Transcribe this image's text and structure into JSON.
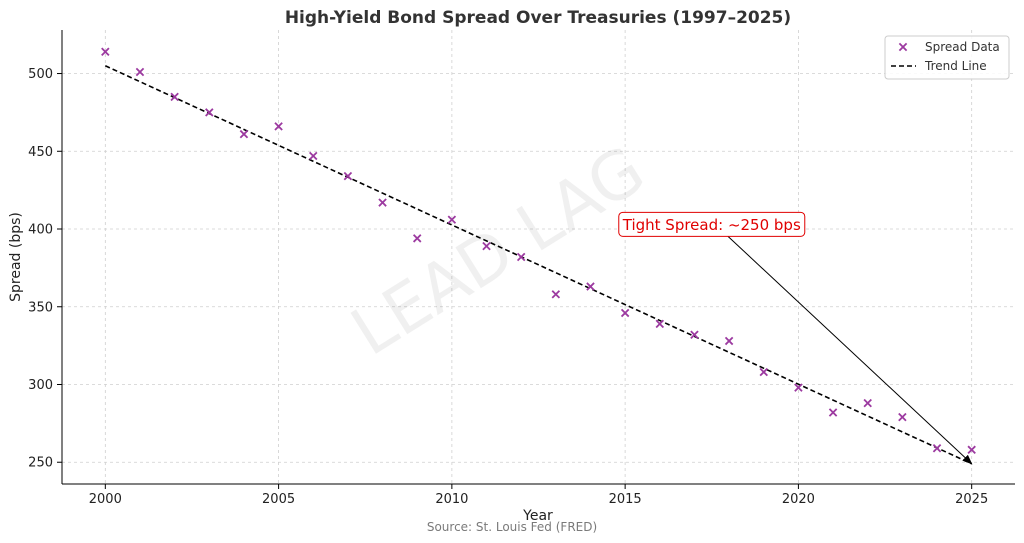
{
  "chart_data": {
    "type": "scatter",
    "title": "High-Yield Bond Spread Over Treasuries (1997–2025)",
    "xlabel": "Year",
    "ylabel": "Spread (bps)",
    "xlim": [
      1998.75,
      2026.25
    ],
    "ylim": [
      236,
      528
    ],
    "xticks": [
      2000,
      2005,
      2010,
      2015,
      2020,
      2025
    ],
    "yticks": [
      250,
      300,
      350,
      400,
      450,
      500
    ],
    "grid": true,
    "legend_position": "top-right",
    "series": [
      {
        "name": "Spread Data",
        "kind": "scatter",
        "marker": "x",
        "color": "#9c3aa0",
        "x": [
          2000,
          2001,
          2002,
          2003,
          2004,
          2005,
          2006,
          2007,
          2008,
          2009,
          2010,
          2011,
          2012,
          2013,
          2014,
          2015,
          2016,
          2017,
          2018,
          2019,
          2020,
          2021,
          2022,
          2023,
          2024,
          2025
        ],
        "y": [
          514,
          501,
          485,
          475,
          461,
          466,
          447,
          434,
          417,
          394,
          406,
          389,
          382,
          358,
          363,
          346,
          339,
          332,
          328,
          308,
          298,
          282,
          288,
          279,
          259,
          258
        ]
      },
      {
        "name": "Trend Line",
        "kind": "line",
        "style": "dashed",
        "color": "#000000",
        "x": [
          2000,
          2025
        ],
        "y": [
          505,
          249
        ]
      }
    ],
    "annotation": {
      "text": "Tight Spread: ~250 bps",
      "color": "#e00000",
      "text_x": 2017.5,
      "text_y": 403,
      "arrow_to_x": 2025,
      "arrow_to_y": 249
    },
    "source": "Source: St. Louis Fed (FRED)",
    "watermark": "LEAD LAG"
  }
}
